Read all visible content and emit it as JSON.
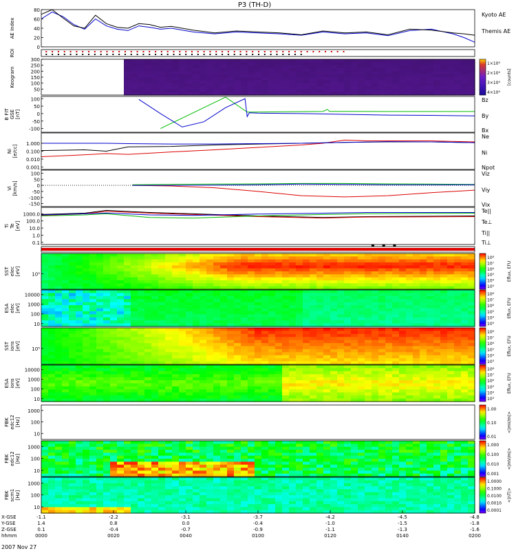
{
  "chart_data": {
    "type": "stacked-timeseries",
    "title": "P3 (TH-D)",
    "date_label": "2007 Nov 27",
    "time": {
      "start_hours": 0.0,
      "end_hours": 2.0,
      "tick_hours": [
        0.0,
        0.3333,
        0.6667,
        1.0,
        1.3333,
        1.6667,
        2.0
      ],
      "tick_labels": [
        "0000",
        "0020",
        "0040",
        "0100",
        "0120",
        "0140",
        "0200"
      ],
      "ephemeris": [
        {
          "label": "X-GSE",
          "values": [
            "-1.1",
            "-2.2",
            "-3.1",
            "-3.7",
            "-4.2",
            "-4.5",
            "-4.8"
          ]
        },
        {
          "label": "Y-GSE",
          "values": [
            "1.4",
            "0.8",
            "0.0",
            "-0.4",
            "-1.0",
            "-1.5",
            "-1.8"
          ]
        },
        {
          "label": "Z-GSE",
          "values": [
            "0.1",
            "-0.4",
            "-0.7",
            "-0.9",
            "-1.1",
            "-1.3",
            "-1.6"
          ]
        },
        {
          "label": "hhmm",
          "values": [
            "0000",
            "0020",
            "0040",
            "0100",
            "0120",
            "0140",
            "0200"
          ]
        }
      ]
    },
    "panels": [
      {
        "id": "ae",
        "kind": "line",
        "ylabel": [
          "AE Index"
        ],
        "ylim": [
          0,
          80
        ],
        "yscale": "linear",
        "yticks": [
          0,
          20,
          40,
          60,
          80
        ],
        "ytick_labels": [
          "0",
          "20",
          "40",
          "60",
          "80"
        ],
        "series": [
          {
            "name": "Kyoto AE",
            "color": "#0000cc",
            "t": [
              0.0,
              0.05,
              0.1,
              0.15,
              0.2,
              0.25,
              0.3,
              0.35,
              0.4,
              0.45,
              0.5,
              0.55,
              0.6,
              0.7,
              0.8,
              0.9,
              1.0,
              1.1,
              1.2,
              1.3,
              1.4,
              1.5,
              1.6,
              1.7,
              1.8,
              1.9,
              1.95,
              2.0
            ],
            "v": [
              60,
              75,
              65,
              48,
              38,
              60,
              45,
              38,
              35,
              45,
              42,
              38,
              40,
              32,
              28,
              32,
              30,
              28,
              25,
              32,
              28,
              30,
              24,
              35,
              38,
              28,
              20,
              10
            ]
          },
          {
            "name": "Themis AE",
            "color": "#000000",
            "t": [
              0.0,
              0.05,
              0.1,
              0.15,
              0.2,
              0.25,
              0.3,
              0.35,
              0.4,
              0.45,
              0.5,
              0.55,
              0.6,
              0.7,
              0.8,
              0.9,
              1.0,
              1.1,
              1.2,
              1.3,
              1.4,
              1.5,
              1.6,
              1.7,
              1.8,
              1.9,
              1.95,
              2.0
            ],
            "v": [
              70,
              80,
              62,
              45,
              40,
              68,
              50,
              42,
              40,
              50,
              48,
              42,
              44,
              36,
              30,
              34,
              32,
              30,
              26,
              34,
              30,
              32,
              26,
              38,
              36,
              30,
              28,
              25
            ]
          }
        ]
      },
      {
        "id": "roi",
        "kind": "dots",
        "ylabel": [
          "ROI"
        ],
        "rows": [
          {
            "color": "#cc0000",
            "t_start": 0.02,
            "t_end": 1.42,
            "step": 0.028
          },
          {
            "color": "#000000",
            "t_start": 0.02,
            "t_end": 1.22,
            "step": 0.028
          }
        ]
      },
      {
        "id": "keogram",
        "kind": "spectrogram",
        "ylabel": [
          "Keogram"
        ],
        "ylim": [
          0,
          300
        ],
        "yscale": "linear",
        "yticks": [
          50,
          100,
          150,
          200,
          250,
          300
        ],
        "ytick_labels": [
          "50",
          "100",
          "150",
          "200",
          "250",
          "300"
        ],
        "data_start": 0.38,
        "colormap": "purple",
        "cb_ticks": [
          "1×10⁴",
          "2×10⁴",
          "3×10⁴",
          "4×10⁴"
        ],
        "cb_label": "[counts]"
      },
      {
        "id": "bfield",
        "kind": "line",
        "ylabel": [
          "B FIT",
          "GSE",
          "[nT]"
        ],
        "ylim": [
          -125,
          115
        ],
        "yscale": "linear",
        "yticks": [
          -100,
          -50,
          0,
          50,
          100
        ],
        "ytick_labels": [
          "-100",
          "-50",
          "0",
          "50",
          "100"
        ],
        "series": [
          {
            "name": "Bz",
            "color": "#dd0000",
            "t": [],
            "v": []
          },
          {
            "name": "By",
            "color": "#00bb00",
            "t": [
              0.55,
              0.85,
              0.95,
              0.96,
              1.3,
              1.32,
              1.33,
              1.6,
              2.0
            ],
            "v": [
              -100,
              110,
              10,
              10,
              15,
              28,
              15,
              14,
              14
            ]
          },
          {
            "name": "Bx",
            "color": "#0000cc",
            "t": [
              0.45,
              0.55,
              0.65,
              0.75,
              0.85,
              0.94,
              0.95,
              0.96,
              1.0,
              1.2,
              1.4,
              1.6,
              1.8,
              2.0
            ],
            "v": [
              95,
              0,
              -90,
              -55,
              40,
              100,
              -20,
              5,
              3,
              0,
              -5,
              -10,
              -12,
              -15
            ]
          }
        ]
      },
      {
        "id": "density",
        "kind": "line",
        "ylabel": [
          "Ni",
          "[e/cc]"
        ],
        "ylim": [
          0.0005,
          20
        ],
        "yscale": "log",
        "yticks": [
          0.001,
          0.01,
          0.1,
          1.0
        ],
        "ytick_labels": [
          "0.001",
          "0.010",
          "0.100",
          "1.000"
        ],
        "series": [
          {
            "name": "Ne",
            "color": "#dd0000",
            "t": [
              0.0,
              0.15,
              0.3,
              0.4,
              0.6,
              0.8,
              1.0,
              1.2,
              1.3,
              1.4,
              1.5,
              1.6,
              1.8,
              2.0
            ],
            "v": [
              0.02,
              0.03,
              0.05,
              0.04,
              0.08,
              0.15,
              0.3,
              0.6,
              1.0,
              2.5,
              2.0,
              2.0,
              2.0,
              1.5
            ]
          },
          {
            "name": "Ni",
            "color": "#000000",
            "t": [
              0.0,
              0.2,
              0.3,
              0.4,
              0.6,
              0.8,
              1.0,
              1.2,
              1.4,
              1.6,
              1.8,
              2.0
            ],
            "v": [
              0.12,
              0.15,
              0.1,
              0.35,
              0.4,
              0.6,
              0.8,
              1.0,
              1.3,
              1.5,
              1.5,
              1.2
            ]
          },
          {
            "name": "Npot",
            "color": "#0000cc",
            "t": [
              0.0,
              0.3,
              0.4,
              0.6,
              0.8,
              1.0,
              1.2,
              1.4,
              1.6,
              1.8,
              2.0
            ],
            "v": [
              1.0,
              1.0,
              0.9,
              0.8,
              0.8,
              0.9,
              1.0,
              1.3,
              1.6,
              1.5,
              1.2
            ]
          }
        ]
      },
      {
        "id": "velocity",
        "kind": "line",
        "ylabel": [
          "Vi",
          "[km/s]"
        ],
        "ylim": [
          -175,
          125
        ],
        "yscale": "linear",
        "yticks": [
          -150,
          -100,
          -50,
          0,
          50,
          100
        ],
        "ytick_labels": [
          "-150",
          "-100",
          "-50",
          "0",
          "50",
          "100"
        ],
        "zero_dotted": true,
        "series": [
          {
            "name": "Viz",
            "color": "#dd0000",
            "t": [
              0.42,
              0.6,
              0.8,
              1.0,
              1.2,
              1.4,
              1.6,
              1.8,
              2.0
            ],
            "v": [
              0,
              -5,
              -20,
              -50,
              -85,
              -95,
              -85,
              -60,
              -40
            ]
          },
          {
            "name": "Viy",
            "color": "#00bb00",
            "t": [
              0.42,
              0.6,
              0.8,
              1.0,
              1.2,
              1.4,
              1.6,
              1.8,
              2.0
            ],
            "v": [
              5,
              8,
              10,
              12,
              15,
              15,
              12,
              10,
              8
            ]
          },
          {
            "name": "Vix",
            "color": "#0000cc",
            "t": [
              0.42,
              0.6,
              0.8,
              1.0,
              1.2,
              1.4,
              1.6,
              1.8,
              2.0
            ],
            "v": [
              0,
              0,
              2,
              5,
              10,
              8,
              5,
              5,
              5
            ]
          }
        ]
      },
      {
        "id": "temperature",
        "kind": "line",
        "ylabel": [
          "Ti",
          "Te",
          "[eV]"
        ],
        "ylim": [
          0.05,
          8000
        ],
        "yscale": "log",
        "yticks": [
          0.1,
          1,
          10,
          100,
          1000
        ],
        "ytick_labels": [
          "0.1",
          "1.0",
          "10.0",
          "100.0",
          "1000.0"
        ],
        "series": [
          {
            "name": "Te||",
            "color": "#000000",
            "t": [
              0.0,
              0.2,
              0.3,
              0.5,
              0.7,
              1.0,
              1.3,
              1.5,
              2.0
            ],
            "v": [
              800,
              1200,
              3000,
              1500,
              1000,
              500,
              300,
              400,
              500
            ]
          },
          {
            "name": "Te⊥",
            "color": "#dd0000",
            "t": [
              0.0,
              0.2,
              0.3,
              0.5,
              0.7,
              1.0,
              1.3,
              1.5,
              2.0
            ],
            "v": [
              600,
              1000,
              2200,
              1200,
              800,
              400,
              250,
              350,
              400
            ]
          },
          {
            "name": "Ti||",
            "color": "#00bb00",
            "t": [
              0.0,
              0.2,
              0.3,
              0.5,
              0.7,
              1.0,
              1.3,
              1.5,
              2.0
            ],
            "v": [
              500,
              700,
              1000,
              300,
              250,
              500,
              800,
              1000,
              1200
            ]
          },
          {
            "name": "Ti⊥",
            "color": "#0000cc",
            "t": [
              0.0,
              0.2,
              0.3,
              0.5,
              0.7,
              1.0,
              1.3,
              1.5,
              2.0
            ],
            "v": [
              700,
              1000,
              1300,
              700,
              600,
              900,
              1200,
              1500,
              1500
            ]
          }
        ]
      },
      {
        "id": "mode_bar",
        "kind": "bar-strip",
        "ylabel": [],
        "color": "#dd0000",
        "markers": [
          1.53,
          1.58,
          1.63
        ]
      },
      {
        "id": "sst_e",
        "kind": "spectrogram",
        "ylabel": [
          "SST",
          "elec",
          "[eV]"
        ],
        "ylim": [
          20000,
          800000
        ],
        "yscale": "log",
        "yticks": [
          100000
        ],
        "ytick_labels": [
          "10⁵"
        ],
        "data_start": 0.0,
        "colormap": "rainbow",
        "cb_ticks": [
          "10⁸",
          "10⁷",
          "10⁶",
          "10⁵",
          "10⁴",
          "10³"
        ],
        "cb_label": "Eflux, EFU"
      },
      {
        "id": "esa_e",
        "kind": "spectrogram",
        "ylabel": [
          "ESA",
          "elec",
          "[eV]"
        ],
        "ylim": [
          5,
          30000
        ],
        "yscale": "log",
        "yticks": [
          10,
          100,
          1000,
          10000
        ],
        "ytick_labels": [
          "10",
          "100",
          "1000",
          "10000"
        ],
        "data_start": 0.0,
        "colormap": "rainbow",
        "cb_ticks": [
          "10⁸",
          "10⁷",
          "10⁶",
          "10⁵",
          "10⁴",
          "10³"
        ],
        "cb_label": "Eflux, EFU"
      },
      {
        "id": "sst_i",
        "kind": "spectrogram",
        "ylabel": [
          "SST",
          "ions",
          "[eV]"
        ],
        "ylim": [
          20000,
          800000
        ],
        "yscale": "log",
        "yticks": [
          100000
        ],
        "ytick_labels": [
          "10⁵"
        ],
        "data_start": 0.0,
        "colormap": "rainbow",
        "cb_ticks": [
          "10⁸",
          "10⁷",
          "10⁶",
          "10⁵",
          "10⁴",
          "10³"
        ],
        "cb_label": "Eflux, EFU"
      },
      {
        "id": "esa_i",
        "kind": "spectrogram",
        "ylabel": [
          "ESA",
          "ions",
          "[eV]"
        ],
        "ylim": [
          5,
          30000
        ],
        "yscale": "log",
        "yticks": [
          10,
          100,
          1000,
          10000
        ],
        "ytick_labels": [
          "10",
          "100",
          "1000",
          "10000"
        ],
        "data_start": 0.0,
        "colormap": "rainbow",
        "cb_ticks": [
          "10⁸",
          "10⁷",
          "10⁶",
          "10⁵",
          "10⁴",
          "10³"
        ],
        "cb_label": "Eflux, EFU"
      },
      {
        "id": "fbk_blank",
        "kind": "empty",
        "ylabel": [
          "FBK",
          "edc12",
          "[Hz]"
        ],
        "ylim": [
          3,
          3000
        ],
        "yscale": "log",
        "yticks": [
          10,
          100,
          1000
        ],
        "ytick_labels": [
          "10",
          "100",
          "1000"
        ],
        "colormap": "rainbow",
        "cb_ticks": [
          "1.00",
          "0.10",
          "0.01"
        ],
        "cb_label": "<|mV/m|>"
      },
      {
        "id": "fbk_e",
        "kind": "spectrogram",
        "ylabel": [
          "FBK",
          "edc12",
          "[Hz]"
        ],
        "ylim": [
          3,
          3000
        ],
        "yscale": "log",
        "yticks": [
          10,
          100,
          1000
        ],
        "ytick_labels": [
          "10",
          "100",
          "1000"
        ],
        "data_start": 0.0,
        "colormap": "rainbow",
        "cb_ticks": [
          "1.000",
          "0.100",
          "0.010",
          "0.001"
        ],
        "cb_label": "<|mV/m|>"
      },
      {
        "id": "fbk_b",
        "kind": "spectrogram",
        "ylabel": [
          "FBK",
          "scm1",
          "[Hz]"
        ],
        "ylim": [
          3,
          3000
        ],
        "yscale": "log",
        "yticks": [
          10,
          100,
          1000
        ],
        "ytick_labels": [
          "10",
          "100",
          "1000"
        ],
        "data_start": 0.0,
        "colormap": "rainbow",
        "cb_ticks": [
          "1.0000",
          "0.1000",
          "0.0100",
          "0.0010",
          "0.0001"
        ],
        "cb_label": "<|nT|>"
      }
    ]
  }
}
